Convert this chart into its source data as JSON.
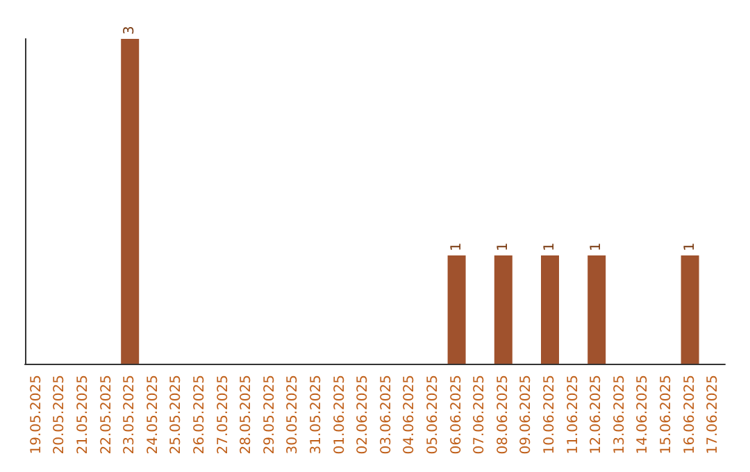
{
  "chart_data": {
    "type": "bar",
    "categories": [
      "19.05.2025",
      "20.05.2025",
      "21.05.2025",
      "22.05.2025",
      "23.05.2025",
      "24.05.2025",
      "25.05.2025",
      "26.05.2025",
      "27.05.2025",
      "28.05.2025",
      "29.05.2025",
      "30.05.2025",
      "31.05.2025",
      "01.06.2025",
      "02.06.2025",
      "03.06.2025",
      "04.06.2025",
      "05.06.2025",
      "06.06.2025",
      "07.06.2025",
      "08.06.2025",
      "09.06.2025",
      "10.06.2025",
      "11.06.2025",
      "12.06.2025",
      "13.06.2025",
      "14.06.2025",
      "15.06.2025",
      "16.06.2025",
      "17.06.2025"
    ],
    "values": [
      0,
      0,
      0,
      0,
      3,
      0,
      0,
      0,
      0,
      0,
      0,
      0,
      0,
      0,
      0,
      0,
      0,
      0,
      1,
      0,
      1,
      0,
      1,
      0,
      1,
      0,
      0,
      0,
      1,
      0
    ],
    "value_labels": [
      null,
      null,
      null,
      null,
      "3",
      null,
      null,
      null,
      null,
      null,
      null,
      null,
      null,
      null,
      null,
      null,
      null,
      null,
      "1",
      null,
      "1",
      null,
      "1",
      null,
      "1",
      null,
      null,
      null,
      "1",
      null
    ],
    "color": "#a0522d",
    "grid": false
  }
}
